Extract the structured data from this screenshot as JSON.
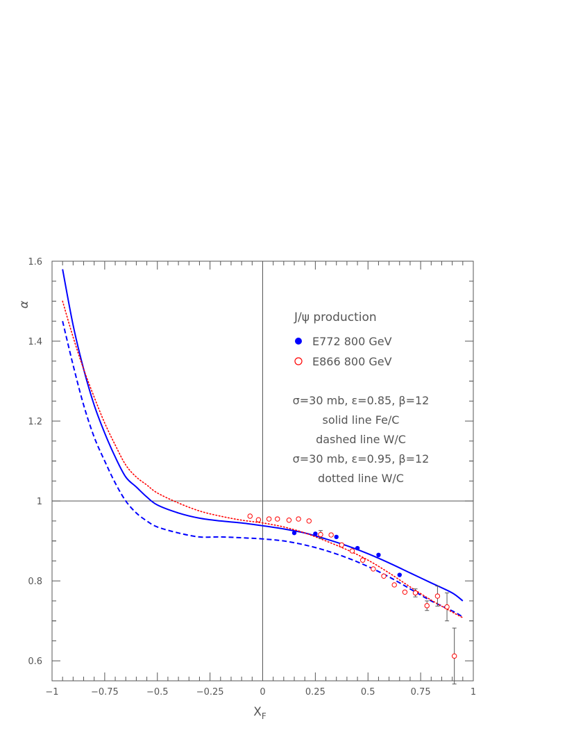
{
  "chart_data": {
    "type": "line",
    "xlabel": "X",
    "xlabel_sub": "F",
    "ylabel": "α",
    "xlim": [
      -1,
      1
    ],
    "ylim": [
      0.55,
      1.6
    ],
    "x_ticks": [
      -1,
      -0.75,
      -0.5,
      -0.25,
      0,
      0.25,
      0.5,
      0.75,
      1
    ],
    "x_tick_labels": [
      "−1",
      "−0.75",
      "−0.5",
      "−0.25",
      "0",
      "0.25",
      "0.5",
      "0.75",
      "1"
    ],
    "y_ticks": [
      0.6,
      0.8,
      1.0,
      1.2,
      1.4,
      1.6
    ],
    "y_tick_labels": [
      "0.6",
      "0.8",
      "1",
      "1.2",
      "1.4",
      "1.6"
    ],
    "reference_lines": {
      "x": 0,
      "y": 1
    },
    "legend": {
      "title": "J/ψ production",
      "entries": [
        {
          "marker": "filled-circle",
          "color": "#0000ff",
          "label": "E772   800 GeV"
        },
        {
          "marker": "open-circle",
          "color": "#ff0000",
          "label": "E866   800 GeV"
        }
      ],
      "annotations": [
        "σ=30 mb, ε=0.85, β=12",
        "solid line  Fe/C",
        "dashed line  W/C",
        "σ=30 mb, ε=0.95, β=12",
        "dotted line  W/C"
      ]
    },
    "series": [
      {
        "name": "solid line Fe/C",
        "style": "solid",
        "color": "#0000ff",
        "x": [
          -0.95,
          -0.9,
          -0.85,
          -0.8,
          -0.75,
          -0.7,
          -0.65,
          -0.6,
          -0.55,
          -0.5,
          -0.4,
          -0.3,
          -0.2,
          -0.1,
          0,
          0.1,
          0.2,
          0.3,
          0.4,
          0.5,
          0.6,
          0.7,
          0.8,
          0.9,
          0.95
        ],
        "y": [
          1.58,
          1.44,
          1.33,
          1.24,
          1.17,
          1.11,
          1.06,
          1.035,
          1.01,
          0.99,
          0.97,
          0.957,
          0.95,
          0.945,
          0.938,
          0.93,
          0.92,
          0.905,
          0.888,
          0.868,
          0.845,
          0.82,
          0.795,
          0.77,
          0.75
        ]
      },
      {
        "name": "dashed line W/C",
        "style": "dashed",
        "color": "#0000ff",
        "x": [
          -0.95,
          -0.9,
          -0.85,
          -0.8,
          -0.75,
          -0.7,
          -0.65,
          -0.6,
          -0.55,
          -0.5,
          -0.4,
          -0.3,
          -0.2,
          -0.1,
          0,
          0.1,
          0.2,
          0.3,
          0.4,
          0.5,
          0.6,
          0.7,
          0.8,
          0.9,
          0.95
        ],
        "y": [
          1.45,
          1.34,
          1.24,
          1.16,
          1.1,
          1.045,
          1.0,
          0.97,
          0.95,
          0.935,
          0.92,
          0.91,
          0.91,
          0.908,
          0.905,
          0.9,
          0.89,
          0.876,
          0.858,
          0.836,
          0.81,
          0.78,
          0.75,
          0.725,
          0.71
        ]
      },
      {
        "name": "dotted line W/C",
        "style": "dotted",
        "color": "#ff0000",
        "x": [
          -0.95,
          -0.9,
          -0.85,
          -0.8,
          -0.75,
          -0.7,
          -0.65,
          -0.6,
          -0.55,
          -0.5,
          -0.4,
          -0.3,
          -0.2,
          -0.1,
          0,
          0.1,
          0.2,
          0.3,
          0.4,
          0.5,
          0.6,
          0.7,
          0.8,
          0.9,
          0.95
        ],
        "y": [
          1.5,
          1.41,
          1.33,
          1.26,
          1.195,
          1.14,
          1.09,
          1.06,
          1.04,
          1.02,
          0.995,
          0.975,
          0.962,
          0.952,
          0.945,
          0.935,
          0.92,
          0.9,
          0.878,
          0.852,
          0.82,
          0.785,
          0.752,
          0.722,
          0.708
        ]
      }
    ],
    "points": [
      {
        "name": "E772 800 GeV",
        "marker": "filled-circle",
        "color": "#0000ff",
        "x": [
          0.15,
          0.25,
          0.35,
          0.45,
          0.55,
          0.65
        ],
        "y": [
          0.92,
          0.918,
          0.91,
          0.882,
          0.865,
          0.815
        ]
      },
      {
        "name": "E866 800 GeV",
        "marker": "open-circle",
        "color": "#ff0000",
        "x": [
          -0.06,
          -0.02,
          0.03,
          0.07,
          0.125,
          0.17,
          0.22,
          0.275,
          0.325,
          0.375,
          0.425,
          0.475,
          0.525,
          0.575,
          0.625,
          0.675,
          0.725,
          0.78,
          0.83,
          0.875,
          0.91
        ],
        "y": [
          0.962,
          0.953,
          0.955,
          0.955,
          0.952,
          0.955,
          0.95,
          0.916,
          0.915,
          0.89,
          0.875,
          0.852,
          0.83,
          0.812,
          0.79,
          0.772,
          0.77,
          0.738,
          0.762,
          0.735,
          0.612
        ],
        "yerr": [
          0.008,
          0.005,
          0.005,
          0.005,
          0.005,
          0.005,
          0.008,
          0.01,
          0.008,
          0.008,
          0.008,
          0.008,
          0.006,
          0.008,
          0.008,
          0.008,
          0.01,
          0.012,
          0.025,
          0.035,
          0.07
        ]
      }
    ]
  }
}
